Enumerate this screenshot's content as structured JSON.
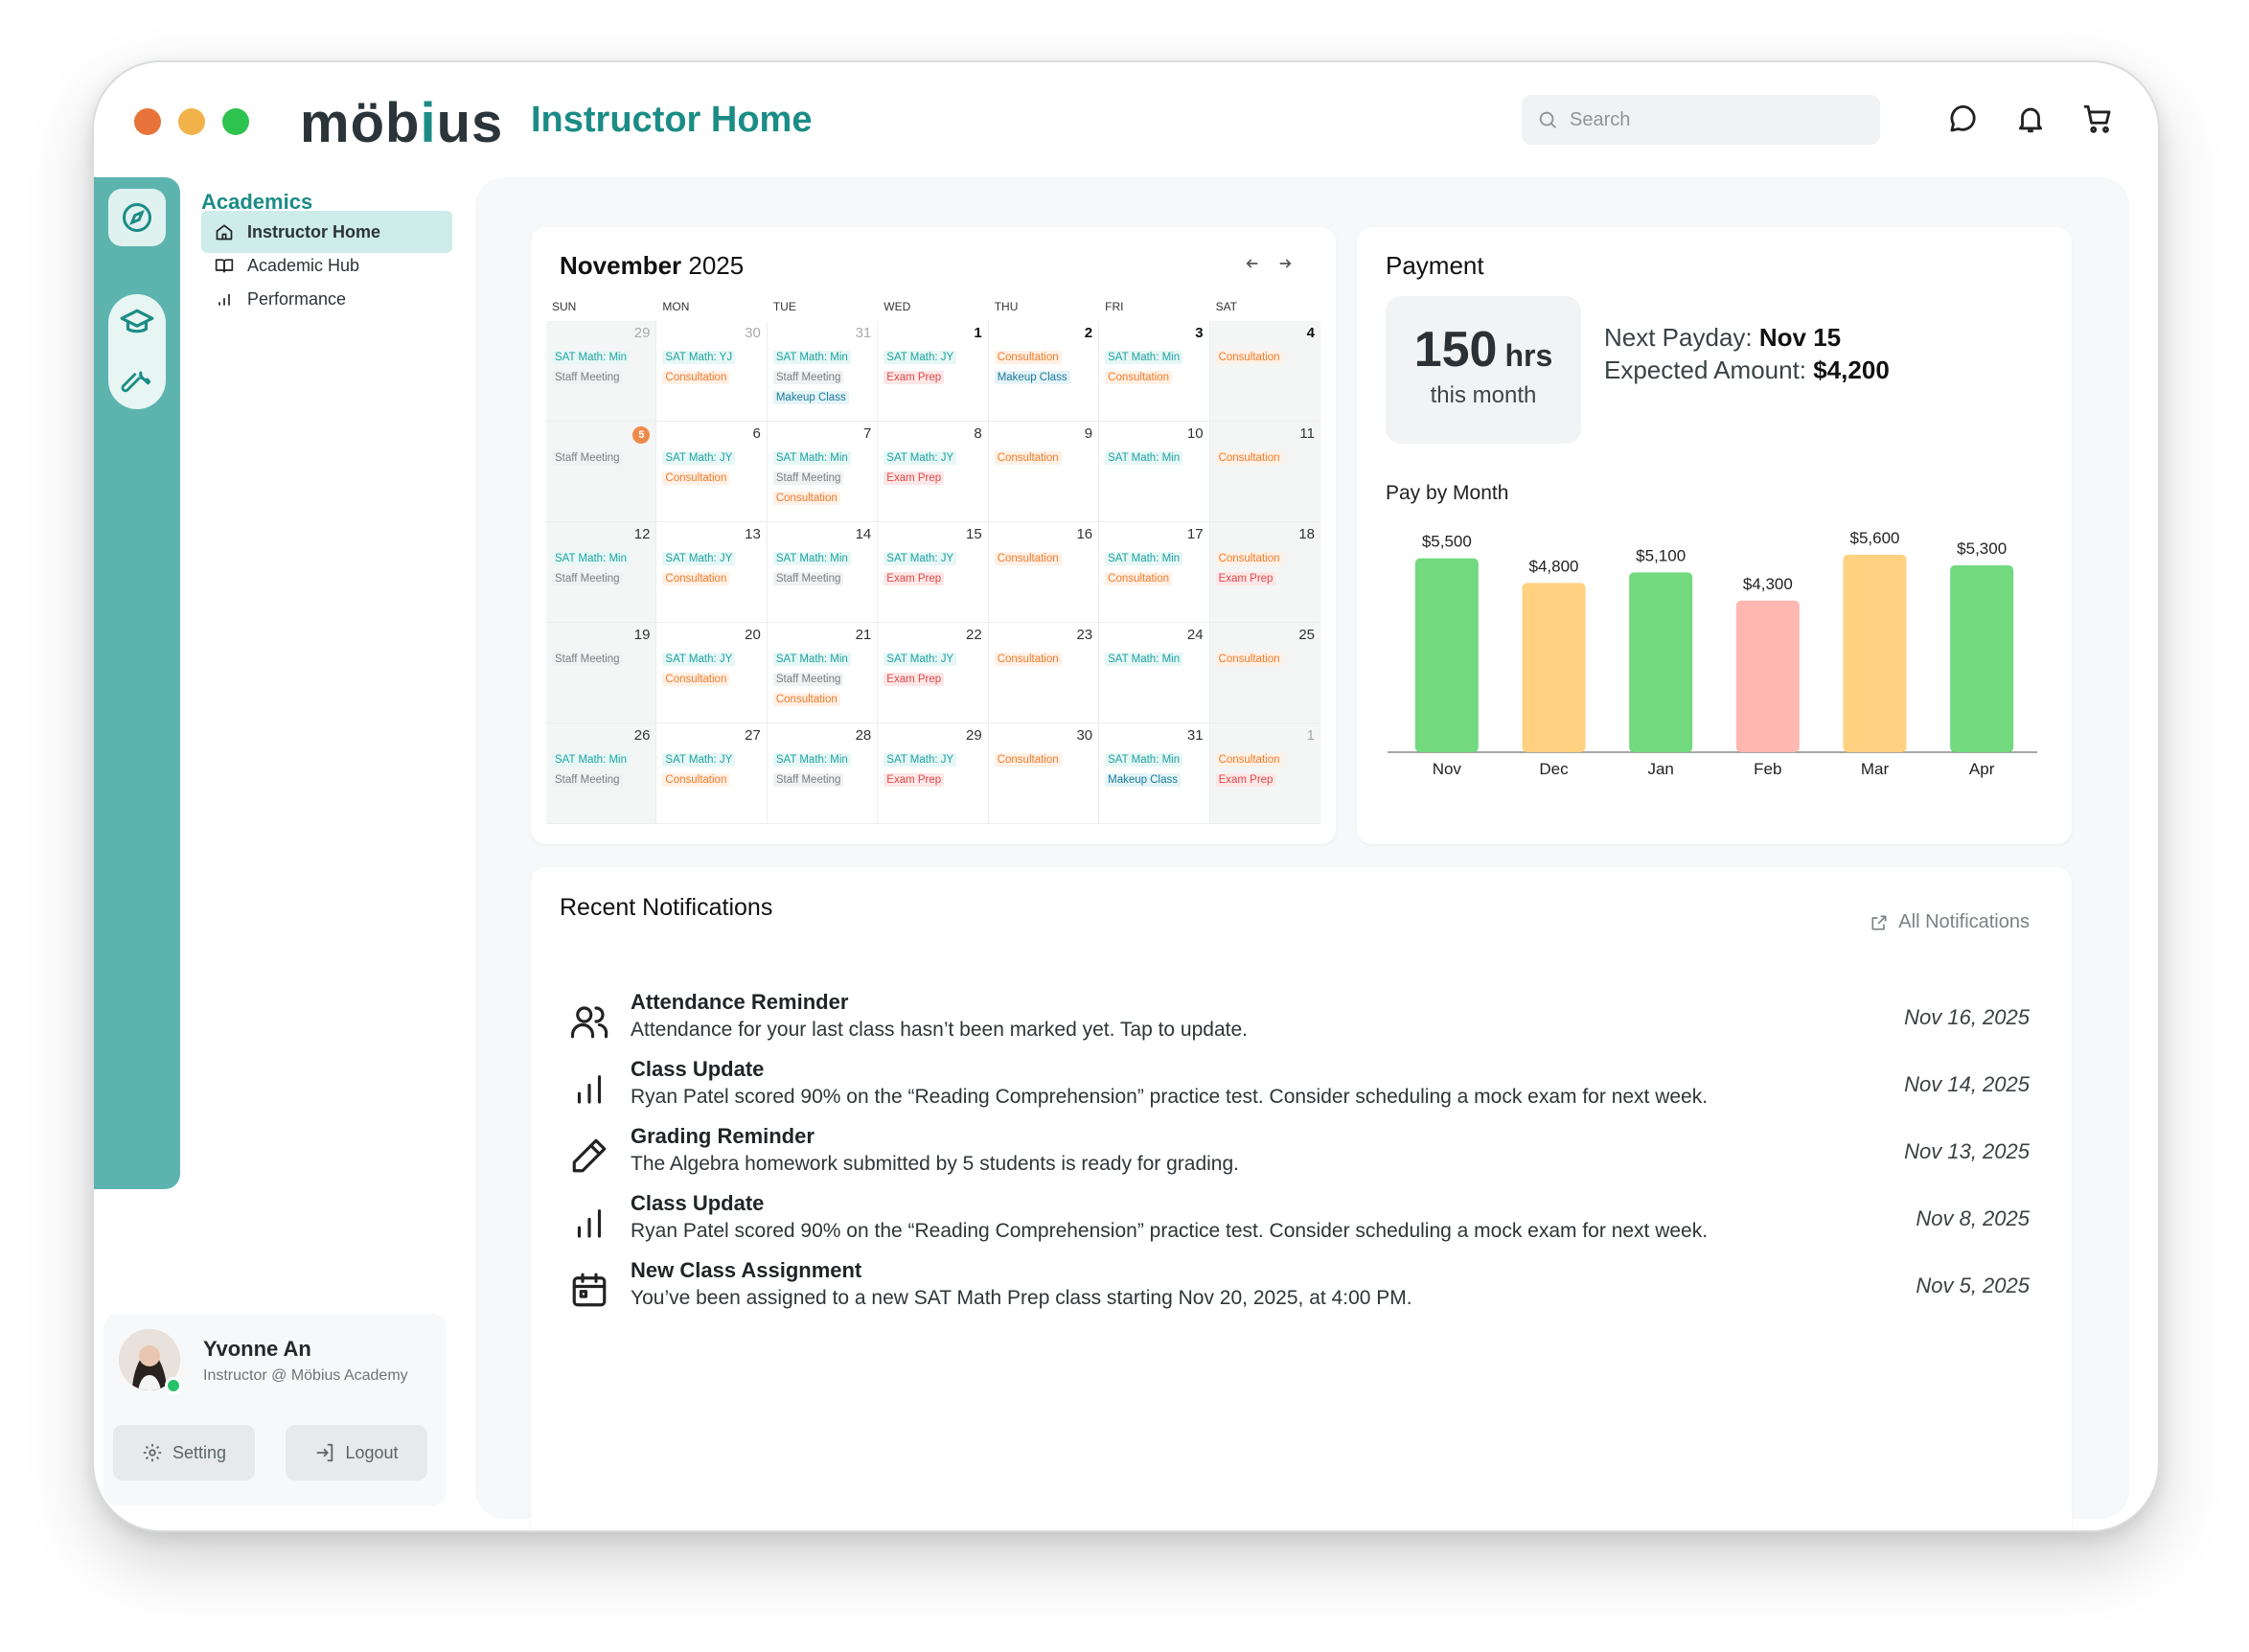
{
  "app": {
    "brand": "möb",
    "brand_accent": "i",
    "brand_tail": "us",
    "title": "Instructor Home"
  },
  "search": {
    "placeholder": "Search"
  },
  "sidebar": {
    "section": "Academics",
    "items": [
      {
        "label": "Instructor Home",
        "icon": "home-icon"
      },
      {
        "label": "Academic Hub",
        "icon": "book-icon"
      },
      {
        "label": "Performance",
        "icon": "bar-chart-icon"
      }
    ]
  },
  "profile": {
    "name": "Yvonne An",
    "role": "Instructor @ Möbius Academy",
    "setting": "Setting",
    "logout": "Logout"
  },
  "calendar": {
    "month": "November",
    "year": "2025",
    "dow": [
      "SUN",
      "MON",
      "TUE",
      "WED",
      "THU",
      "FRI",
      "SAT"
    ],
    "weeks": [
      [
        {
          "d": "29",
          "muted": true,
          "ev": [
            [
              "SAT Math: Min",
              "teal"
            ],
            [
              "Staff Meeting",
              "gray"
            ]
          ]
        },
        {
          "d": "30",
          "muted": true,
          "ev": [
            [
              "SAT Math: YJ",
              "teal"
            ],
            [
              "Consultation",
              "orange"
            ]
          ]
        },
        {
          "d": "31",
          "muted": true,
          "ev": [
            [
              "SAT Math: Min",
              "teal"
            ],
            [
              "Staff Meeting",
              "gray"
            ],
            [
              "Makeup Class",
              "blue"
            ]
          ]
        },
        {
          "d": "1",
          "bold": true,
          "ev": [
            [
              "SAT Math: JY",
              "teal"
            ],
            [
              "Exam Prep",
              "red"
            ]
          ]
        },
        {
          "d": "2",
          "bold": true,
          "ev": [
            [
              "Consultation",
              "orange"
            ],
            [
              "Makeup Class",
              "blue"
            ]
          ]
        },
        {
          "d": "3",
          "bold": true,
          "ev": [
            [
              "SAT Math: Min",
              "teal"
            ],
            [
              "Consultation",
              "orange"
            ]
          ]
        },
        {
          "d": "4",
          "bold": true,
          "ev": [
            [
              "Consultation",
              "orange"
            ]
          ]
        }
      ],
      [
        {
          "d": "5",
          "today": true,
          "ev": [
            [
              "Staff Meeting",
              "gray"
            ]
          ]
        },
        {
          "d": "6",
          "ev": [
            [
              "SAT Math: JY",
              "teal"
            ],
            [
              "Consultation",
              "orange"
            ]
          ]
        },
        {
          "d": "7",
          "ev": [
            [
              "SAT Math: Min",
              "teal"
            ],
            [
              "Staff Meeting",
              "gray"
            ],
            [
              "Consultation",
              "orange"
            ]
          ]
        },
        {
          "d": "8",
          "ev": [
            [
              "SAT Math: JY",
              "teal"
            ],
            [
              "Exam Prep",
              "red"
            ]
          ]
        },
        {
          "d": "9",
          "ev": [
            [
              "Consultation",
              "orange"
            ]
          ]
        },
        {
          "d": "10",
          "ev": [
            [
              "SAT Math: Min",
              "teal"
            ]
          ]
        },
        {
          "d": "11",
          "ev": [
            [
              "Consultation",
              "orange"
            ]
          ]
        }
      ],
      [
        {
          "d": "12",
          "ev": [
            [
              "SAT Math: Min",
              "teal"
            ],
            [
              "Staff Meeting",
              "gray"
            ]
          ]
        },
        {
          "d": "13",
          "ev": [
            [
              "SAT Math: JY",
              "teal"
            ],
            [
              "Consultation",
              "orange"
            ]
          ]
        },
        {
          "d": "14",
          "ev": [
            [
              "SAT Math: Min",
              "teal"
            ],
            [
              "Staff Meeting",
              "gray"
            ]
          ]
        },
        {
          "d": "15",
          "ev": [
            [
              "SAT Math: JY",
              "teal"
            ],
            [
              "Exam Prep",
              "red"
            ]
          ]
        },
        {
          "d": "16",
          "ev": [
            [
              "Consultation",
              "orange"
            ]
          ]
        },
        {
          "d": "17",
          "ev": [
            [
              "SAT Math: Min",
              "teal"
            ],
            [
              "Consultation",
              "orange"
            ]
          ]
        },
        {
          "d": "18",
          "ev": [
            [
              "Consultation",
              "orange"
            ],
            [
              "Exam Prep",
              "red"
            ]
          ]
        }
      ],
      [
        {
          "d": "19",
          "ev": [
            [
              "Staff Meeting",
              "gray"
            ]
          ]
        },
        {
          "d": "20",
          "ev": [
            [
              "SAT Math: JY",
              "teal"
            ],
            [
              "Consultation",
              "orange"
            ]
          ]
        },
        {
          "d": "21",
          "ev": [
            [
              "SAT Math: Min",
              "teal"
            ],
            [
              "Staff Meeting",
              "gray"
            ],
            [
              "Consultation",
              "orange"
            ]
          ]
        },
        {
          "d": "22",
          "ev": [
            [
              "SAT Math: JY",
              "teal"
            ],
            [
              "Exam Prep",
              "red"
            ]
          ]
        },
        {
          "d": "23",
          "ev": [
            [
              "Consultation",
              "orange"
            ]
          ]
        },
        {
          "d": "24",
          "ev": [
            [
              "SAT Math: Min",
              "teal"
            ]
          ]
        },
        {
          "d": "25",
          "ev": [
            [
              "Consultation",
              "orange"
            ]
          ]
        }
      ],
      [
        {
          "d": "26",
          "ev": [
            [
              "SAT Math: Min",
              "teal"
            ],
            [
              "Staff Meeting",
              "gray"
            ]
          ]
        },
        {
          "d": "27",
          "ev": [
            [
              "SAT Math: JY",
              "teal"
            ],
            [
              "Consultation",
              "orange"
            ]
          ]
        },
        {
          "d": "28",
          "ev": [
            [
              "SAT Math: Min",
              "teal"
            ],
            [
              "Staff Meeting",
              "gray"
            ]
          ]
        },
        {
          "d": "29",
          "ev": [
            [
              "SAT Math: JY",
              "teal"
            ],
            [
              "Exam Prep",
              "red"
            ]
          ]
        },
        {
          "d": "30",
          "ev": [
            [
              "Consultation",
              "orange"
            ]
          ]
        },
        {
          "d": "31",
          "ev": [
            [
              "SAT Math: Min",
              "teal"
            ],
            [
              "Makeup Class",
              "blue"
            ]
          ]
        },
        {
          "d": "1",
          "muted": true,
          "ev": [
            [
              "Consultation",
              "orange"
            ],
            [
              "Exam Prep",
              "red"
            ]
          ]
        }
      ]
    ]
  },
  "payment": {
    "title": "Payment",
    "hours_value": "150",
    "hours_unit": "hrs",
    "hours_label": "this month",
    "next_payday_label": "Next Payday:",
    "next_payday_value": "Nov 15",
    "expected_label": "Expected Amount:",
    "expected_value": "$4,200",
    "chart_title": "Pay by Month"
  },
  "chart_data": {
    "type": "bar",
    "title": "Pay by Month",
    "categories": [
      "Nov",
      "Dec",
      "Jan",
      "Feb",
      "Mar",
      "Apr"
    ],
    "values": [
      5500,
      4800,
      5100,
      4300,
      5600,
      5300
    ],
    "labels": [
      "$5,500",
      "$4,800",
      "$5,100",
      "$4,300",
      "$5,600",
      "$5,300"
    ],
    "colors": [
      "#72d97e",
      "#ffd180",
      "#72d97e",
      "#ffb7b2",
      "#ffd180",
      "#72d97e"
    ],
    "ylim": [
      0,
      6500
    ],
    "grid": false
  },
  "notifications": {
    "title": "Recent Notifications",
    "all_label": "All Notifications",
    "items": [
      {
        "icon": "users-icon",
        "title": "Attendance Reminder",
        "body": "Attendance for your last class hasn’t been marked yet. Tap to update.",
        "date": "Nov 16, 2025"
      },
      {
        "icon": "bar-chart-icon",
        "title": "Class Update",
        "body": "Ryan Patel scored 90% on the “Reading Comprehension” practice test. Consider scheduling a mock exam for next week.",
        "date": "Nov 14, 2025"
      },
      {
        "icon": "pencil-icon",
        "title": "Grading Reminder",
        "body": "The Algebra homework submitted by 5 students is ready for grading.",
        "date": "Nov 13, 2025"
      },
      {
        "icon": "bar-chart-icon",
        "title": "Class Update",
        "body": "Ryan Patel scored 90% on the “Reading Comprehension” practice test. Consider scheduling a mock exam for next week.",
        "date": "Nov 8, 2025"
      },
      {
        "icon": "calendar-icon",
        "title": "New Class  Assignment",
        "body": "You’ve been assigned to a new SAT Math Prep class starting Nov 20, 2025, at 4:00 PM.",
        "date": "Nov 5, 2025"
      }
    ]
  },
  "colors": {
    "accent": "#1b8c86",
    "rail": "#5db3ae",
    "dot_red": "#e8733a",
    "dot_yellow": "#f2b24a",
    "dot_green": "#2ec24f"
  }
}
